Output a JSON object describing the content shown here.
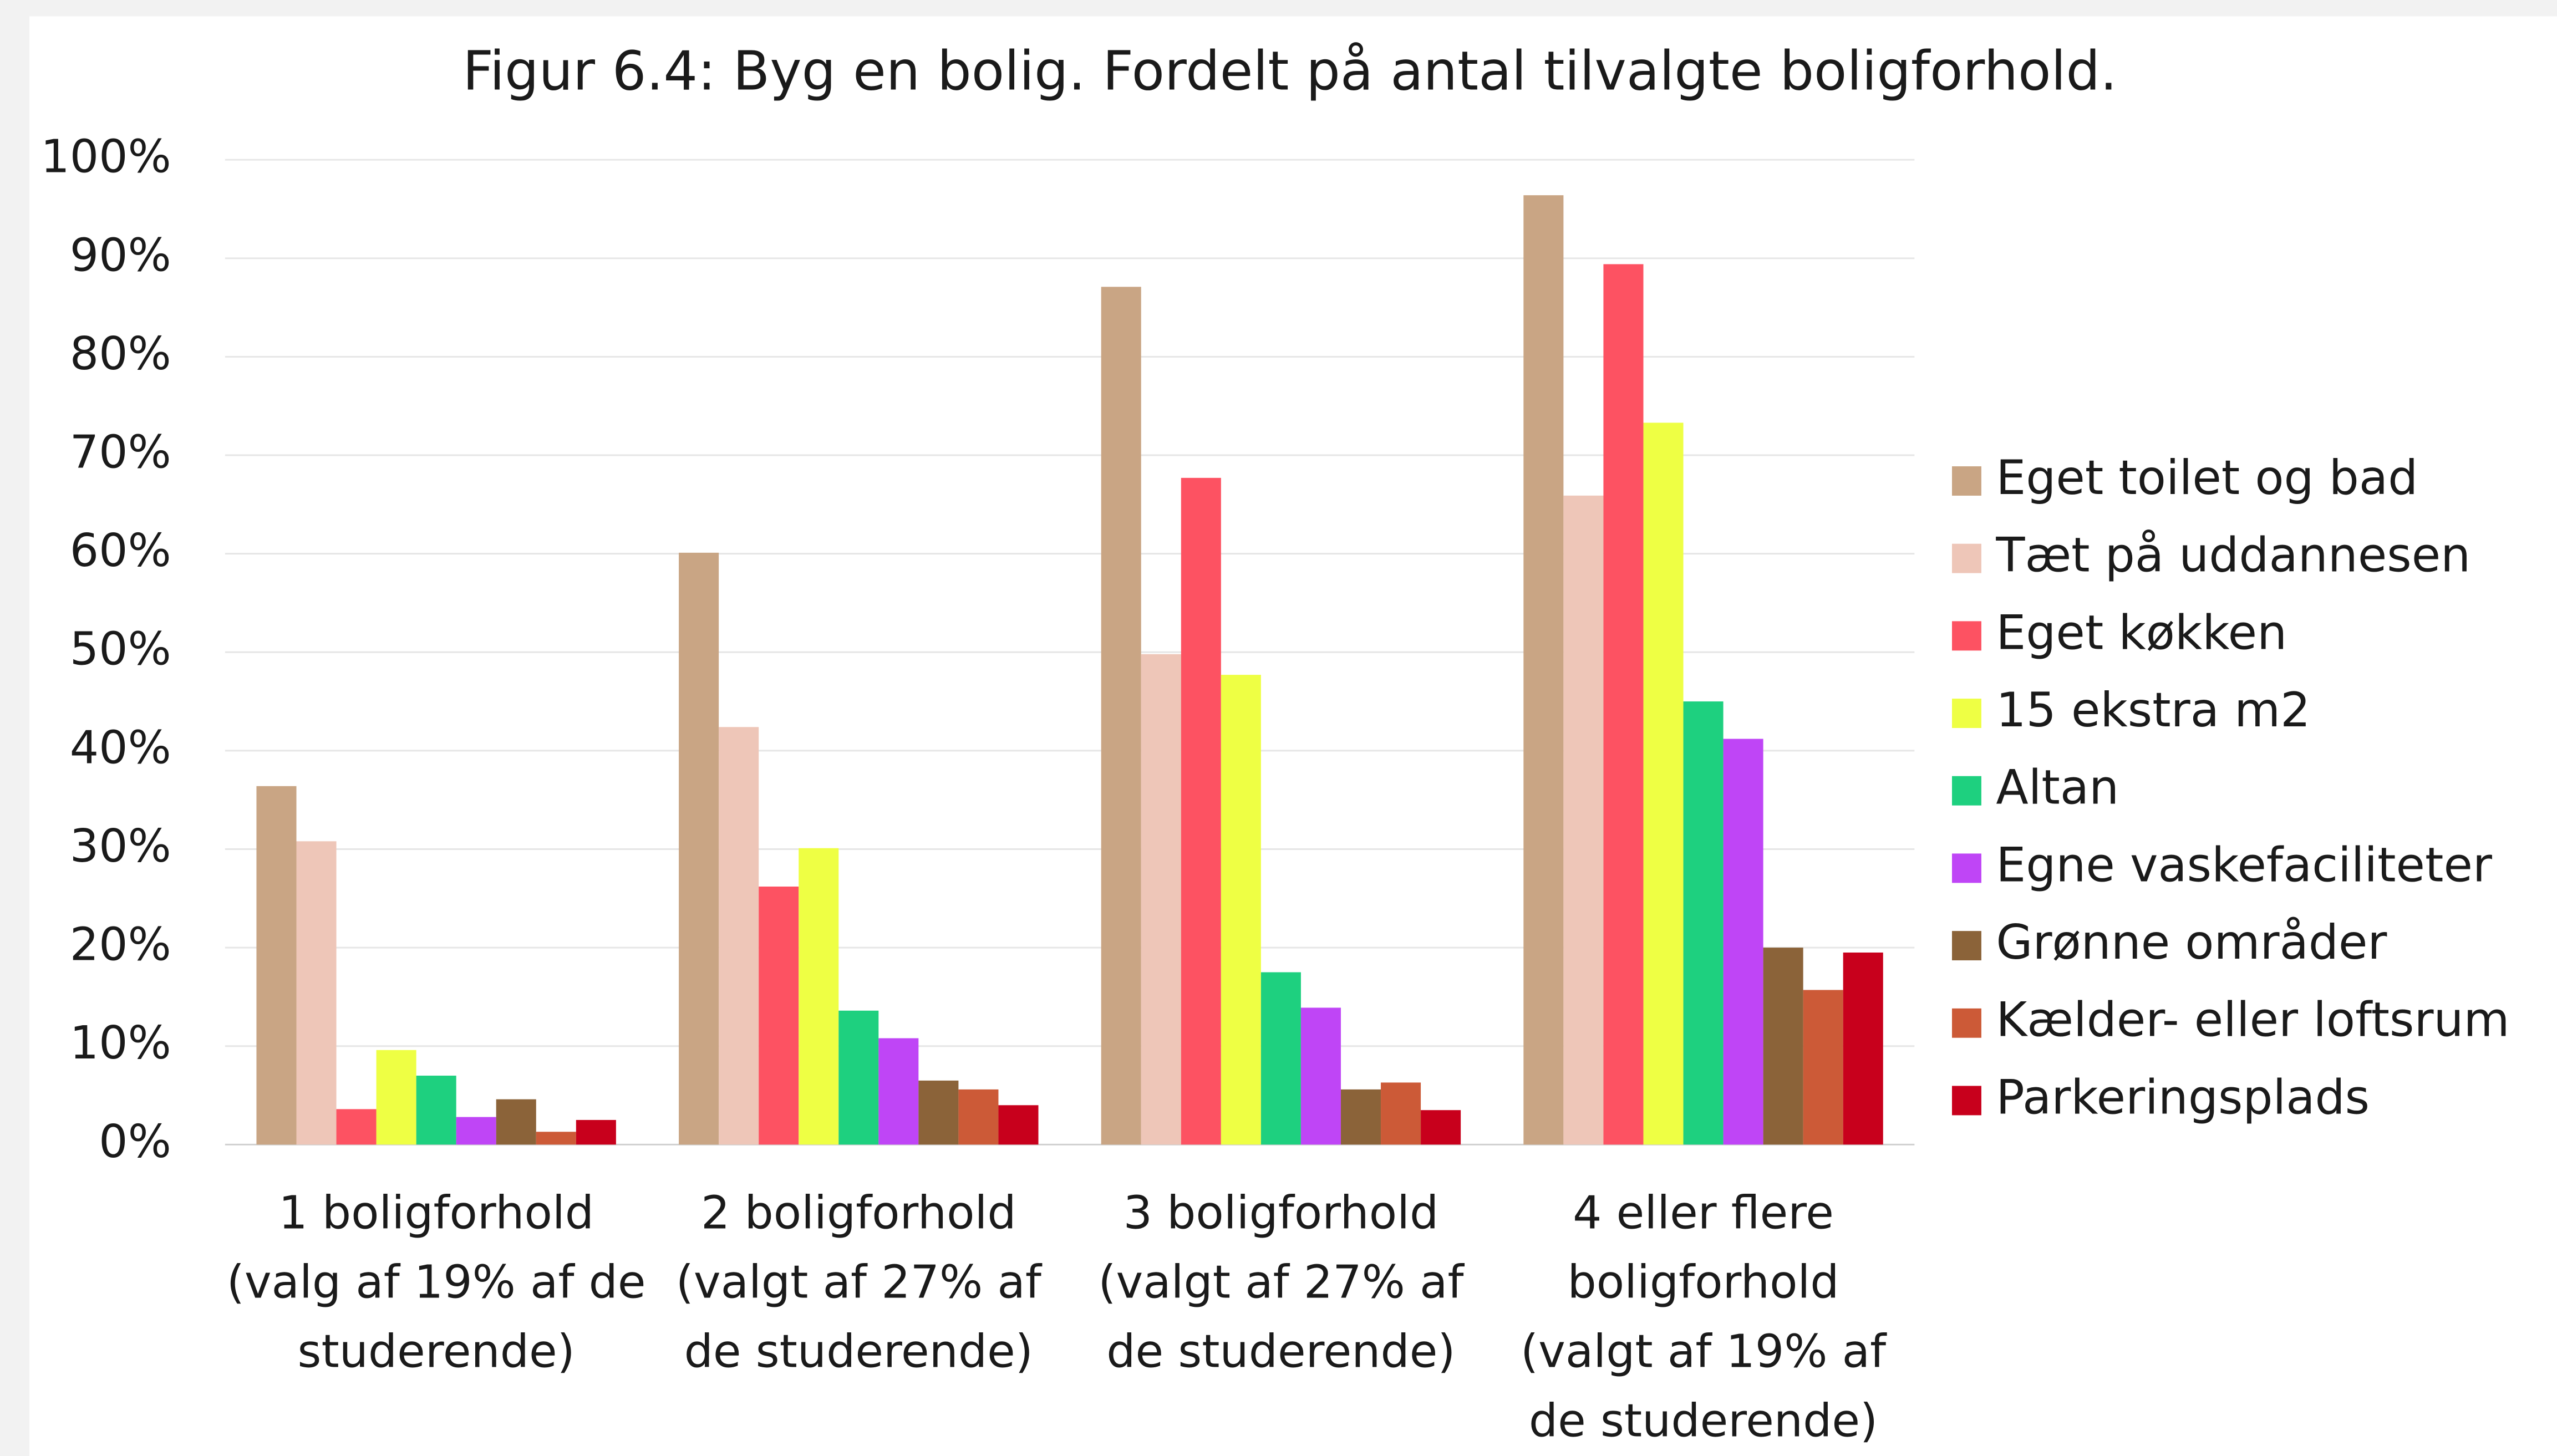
{
  "chart_data": {
    "type": "bar",
    "title": "Figur 6.4: Byg en bolig. Fordelt på antal tilvalgte boligforhold.",
    "categories": [
      "1 boligforhold (valg af 19% af de studerende)",
      "2 boligforhold (valgt af 27% af de studerende)",
      "3 boligforhold (valgt af 27% af de studerende)",
      "4 eller flere boligforhold (valgt af 19% af de studerende)"
    ],
    "series": [
      {
        "name": "Eget toilet og bad",
        "color": "#c9a584",
        "values": [
          36.4,
          60.1,
          87.1,
          96.4
        ]
      },
      {
        "name": "Tæt på uddannesen",
        "color": "#eec6b8",
        "values": [
          30.8,
          42.4,
          49.8,
          65.9
        ]
      },
      {
        "name": "Eget køkken",
        "color": "#fd5262",
        "values": [
          3.6,
          26.2,
          67.7,
          89.4
        ]
      },
      {
        "name": "15 ekstra m2",
        "color": "#eeff44",
        "values": [
          9.6,
          30.1,
          47.7,
          73.3
        ]
      },
      {
        "name": "Altan",
        "color": "#1ed07f",
        "values": [
          7.0,
          13.6,
          17.5,
          45.0
        ]
      },
      {
        "name": "Egne vaskefaciliteter",
        "color": "#bf45f6",
        "values": [
          2.8,
          10.8,
          13.9,
          41.2
        ]
      },
      {
        "name": "Grønne områder",
        "color": "#8b6339",
        "values": [
          4.6,
          6.5,
          5.6,
          20.0
        ]
      },
      {
        "name": "Kælder- eller loftsrum",
        "color": "#cc5a37",
        "values": [
          1.3,
          5.6,
          6.3,
          15.7
        ]
      },
      {
        "name": "Parkeringsplads",
        "color": "#c8001c",
        "values": [
          2.5,
          4.0,
          3.5,
          19.5
        ]
      }
    ],
    "ylim": [
      0,
      100
    ],
    "yticks": [
      {
        "value": 0,
        "label": "0%"
      },
      {
        "value": 10,
        "label": "10%"
      },
      {
        "value": 20,
        "label": "20%"
      },
      {
        "value": 30,
        "label": "30%"
      },
      {
        "value": 40,
        "label": "40%"
      },
      {
        "value": 50,
        "label": "50%"
      },
      {
        "value": 60,
        "label": "60%"
      },
      {
        "value": 70,
        "label": "70%"
      },
      {
        "value": 80,
        "label": "80%"
      },
      {
        "value": 90,
        "label": "90%"
      },
      {
        "value": 100,
        "label": "100%"
      }
    ],
    "grid": true,
    "legend": "right"
  }
}
